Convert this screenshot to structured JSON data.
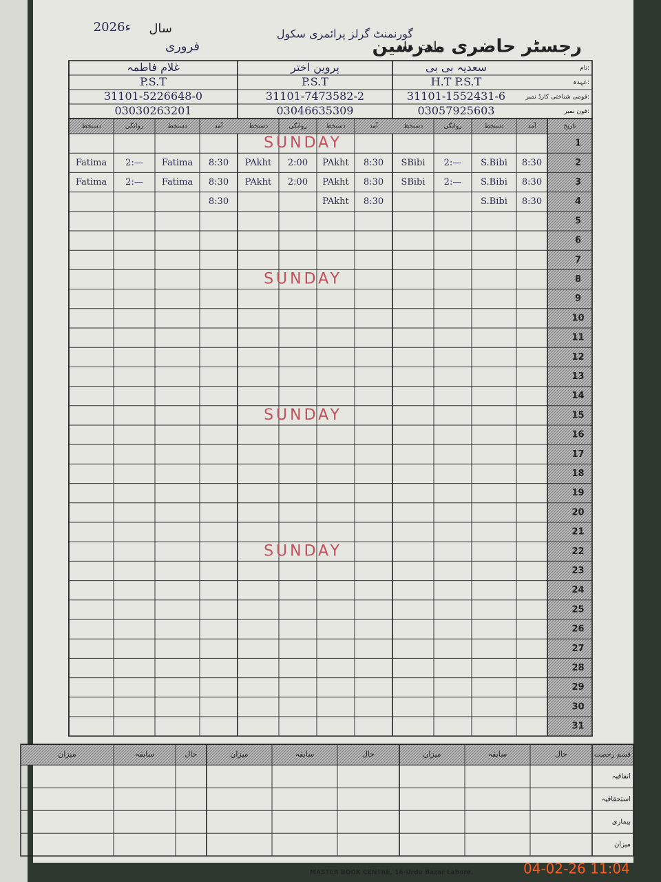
{
  "header": {
    "title": "رجسٹر حاضری مدرسین",
    "school": "گورنمنٹ گرلز پرائمری سکول",
    "month_label": "بابت ماہ",
    "month": "فروری",
    "year_label": "سال",
    "year": "2026ء"
  },
  "info_labels": [
    "نام:",
    "عہدہ:",
    "قومی شناختی کارڈ نمبر:",
    "فون نمبر:"
  ],
  "teachers": [
    {
      "name": "سعدیہ بی بی",
      "post": "H.T  P.S.T",
      "cnic": "31101-1552431-6",
      "phone": "03057925603"
    },
    {
      "name": "پروین اختر",
      "post": "P.S.T",
      "cnic": "31101-7473582-2",
      "phone": "03046635309"
    },
    {
      "name": "غلام فاطمہ",
      "post": "P.S.T",
      "cnic": "31101-5226648-0",
      "phone": "03030263201"
    }
  ],
  "column_headers": {
    "date": "تاریخ",
    "arrival": "آمد",
    "arrival_sign": "دستخط",
    "departure": "روانگی",
    "departure_sign": "دستخط"
  },
  "days": [
    {
      "date": 1,
      "note": "SUNDAY"
    },
    {
      "date": 2,
      "teachers": [
        {
          "arrival": "8:30",
          "arrival_sign": "S.Bibi",
          "departure": "2:—",
          "departure_sign": "SBibi"
        },
        {
          "arrival": "8:30",
          "arrival_sign": "PAkht",
          "departure": "2:00",
          "departure_sign": "PAkht"
        },
        {
          "arrival": "8:30",
          "arrival_sign": "Fatima",
          "departure": "2:—",
          "departure_sign": "Fatima"
        }
      ]
    },
    {
      "date": 3,
      "teachers": [
        {
          "arrival": "8:30",
          "arrival_sign": "S.Bibi",
          "departure": "2:—",
          "departure_sign": "SBibi"
        },
        {
          "arrival": "8:30",
          "arrival_sign": "PAkht",
          "departure": "2:00",
          "departure_sign": "PAkht"
        },
        {
          "arrival": "8:30",
          "arrival_sign": "Fatima",
          "departure": "2:—",
          "departure_sign": "Fatima"
        }
      ]
    },
    {
      "date": 4,
      "teachers": [
        {
          "arrival": "8:30",
          "arrival_sign": "S.Bibi"
        },
        {
          "arrival": "8:30",
          "arrival_sign": "PAkht"
        },
        {
          "arrival": "8:30"
        }
      ]
    },
    {
      "date": 5
    },
    {
      "date": 6
    },
    {
      "date": 7
    },
    {
      "date": 8,
      "note": "SUNDAY"
    },
    {
      "date": 9
    },
    {
      "date": 10
    },
    {
      "date": 11
    },
    {
      "date": 12
    },
    {
      "date": 13
    },
    {
      "date": 14
    },
    {
      "date": 15,
      "note": "SUNDAY"
    },
    {
      "date": 16
    },
    {
      "date": 17
    },
    {
      "date": 18
    },
    {
      "date": 19
    },
    {
      "date": 20
    },
    {
      "date": 21
    },
    {
      "date": 22,
      "note": "SUNDAY"
    },
    {
      "date": 23
    },
    {
      "date": 24
    },
    {
      "date": 25
    },
    {
      "date": 26
    },
    {
      "date": 27
    },
    {
      "date": 28
    },
    {
      "date": 29
    },
    {
      "date": 30
    },
    {
      "date": 31
    }
  ],
  "leave_table": {
    "header": "قسم رخصت",
    "columns": [
      "حال",
      "سابقہ",
      "میزان"
    ],
    "rows": [
      "اتفاقیہ",
      "استحقاقیہ",
      "بیماری",
      "میزان"
    ]
  },
  "footer": "MASTER BOOK CENTRE, 16-Urdu Bazar Lahore.",
  "timestamp": "04-02-26 11:04"
}
